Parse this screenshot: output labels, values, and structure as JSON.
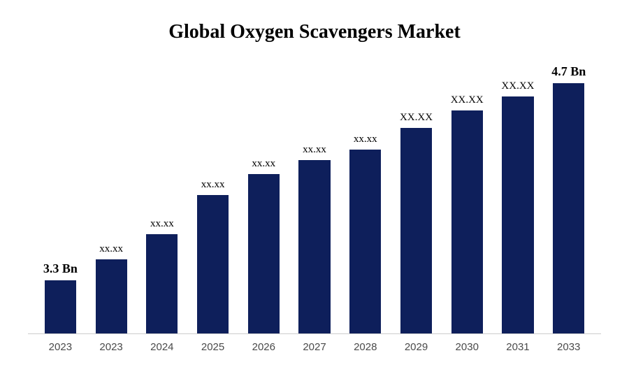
{
  "chart": {
    "type": "bar",
    "title": "Global Oxygen Scavengers Market",
    "title_fontsize": 28,
    "title_fontweight": "bold",
    "background_color": "#ffffff",
    "bar_color": "#0e1f5b",
    "axis_color": "#cccccc",
    "text_color": "#000000",
    "x_label_color": "#4a4a4a",
    "bar_width_ratio": 0.62,
    "ylim": [
      0,
      380
    ],
    "categories": [
      "2023",
      "2023",
      "2024",
      "2025",
      "2026",
      "2027",
      "2028",
      "2029",
      "2030",
      "2031",
      "2033"
    ],
    "values": [
      75,
      105,
      140,
      195,
      225,
      245,
      260,
      290,
      315,
      335,
      355
    ],
    "value_labels": [
      "3.3 Bn",
      "xx.xx",
      "xx.xx",
      "xx.xx",
      "xx.xx",
      "xx.xx",
      "xx.xx",
      "XX.XX",
      "XX.XX",
      "XX.XX",
      "4.7 Bn"
    ],
    "label_bold": [
      true,
      false,
      false,
      false,
      false,
      false,
      false,
      false,
      false,
      false,
      true
    ],
    "label_fontsize": 15,
    "bold_label_fontsize": 18,
    "x_label_fontsize": 15
  }
}
